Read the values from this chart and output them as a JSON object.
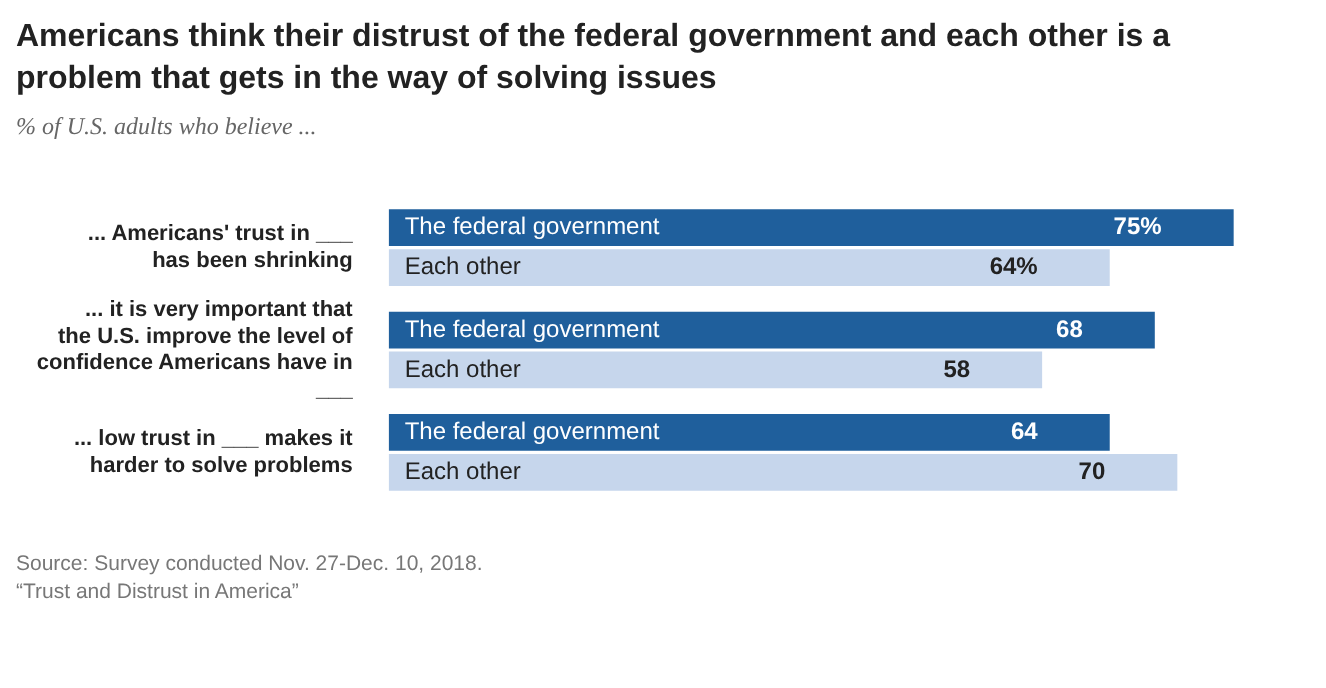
{
  "chart_data": {
    "type": "bar",
    "orientation": "horizontal",
    "title": "Americans think their distrust of the federal government and each other is a problem that gets in the way of solving issues",
    "subtitle": "% of U.S. adults who believe ...",
    "categories": [
      "... Americans' trust in ___ has been shrinking",
      "... it is very important that the U.S. improve the level of confidence Americans have in ___",
      "... low trust in ___ makes it harder to solve problems"
    ],
    "series": [
      {
        "name": "The federal government",
        "color": "#1f5f9c",
        "values": [
          75,
          68,
          64
        ],
        "value_labels": [
          "75%",
          "68",
          "64"
        ]
      },
      {
        "name": "Each other",
        "color": "#c6d6ec",
        "values": [
          64,
          58,
          70
        ],
        "value_labels": [
          "64%",
          "58",
          "70"
        ]
      }
    ],
    "legend": false,
    "annotations": [
      "Source: Survey conducted Nov. 27-Dec. 10, 2018.",
      "“Trust and Distrust in America”"
    ]
  }
}
